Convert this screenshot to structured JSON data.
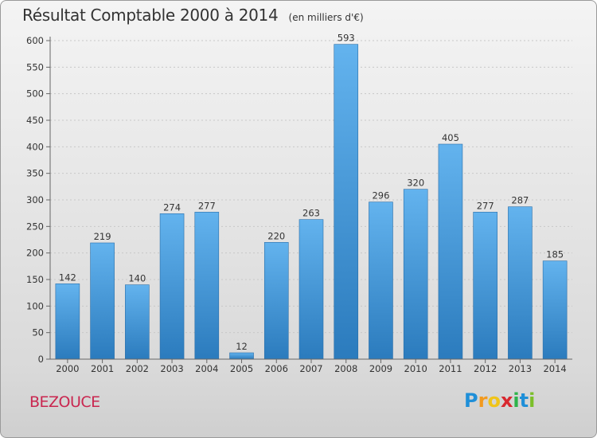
{
  "title": "Résultat Comptable 2000 à 2014",
  "unit_note": "(en milliers d'€)",
  "location": "BEZOUCE",
  "logo": {
    "letters": [
      "P",
      "r",
      "o",
      "x",
      "i",
      "t",
      "i"
    ],
    "colors": [
      "#1f8fd8",
      "#f29a1f",
      "#f0c419",
      "#d8282f",
      "#2db34a",
      "#1f8fd8",
      "#7bbf2a"
    ]
  },
  "colors": {
    "bar_top": "#63b3ee",
    "bar_bottom": "#2b7bbd",
    "title_color": "#333333",
    "location_color": "#c9264f"
  },
  "chart_data": {
    "type": "bar",
    "categories": [
      "2000",
      "2001",
      "2002",
      "2003",
      "2004",
      "2005",
      "2006",
      "2007",
      "2008",
      "2009",
      "2010",
      "2011",
      "2012",
      "2013",
      "2014"
    ],
    "values": [
      142,
      219,
      140,
      274,
      277,
      12,
      220,
      263,
      593,
      296,
      320,
      405,
      277,
      287,
      185
    ],
    "ylim": [
      0,
      600
    ],
    "yticks": [
      0,
      50,
      100,
      150,
      200,
      250,
      300,
      350,
      400,
      450,
      500,
      550,
      600
    ],
    "grid": true,
    "xlabel": "",
    "ylabel": ""
  }
}
